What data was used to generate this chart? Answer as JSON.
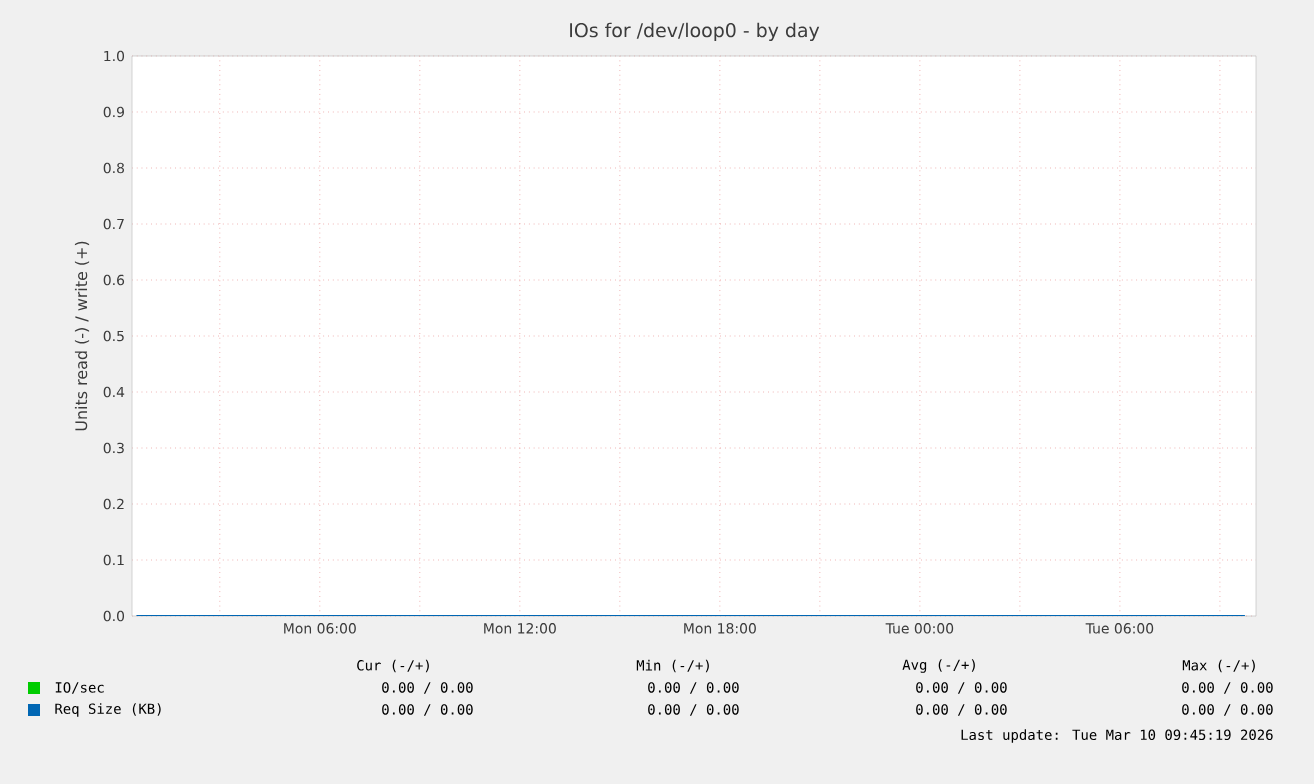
{
  "chart_data": {
    "type": "line",
    "title": "IOs for /dev/loop0 - by day",
    "ylabel": "Units read (-) / write (+)",
    "xlim": [
      "2026-03-09T00:22",
      "2026-03-10T10:05"
    ],
    "ylim": [
      0,
      1
    ],
    "xticks": [
      {
        "value": "2026-03-09T03:00",
        "label": null
      },
      {
        "value": "2026-03-09T06:00",
        "label": "Mon 06:00"
      },
      {
        "value": "2026-03-09T09:00",
        "label": null
      },
      {
        "value": "2026-03-09T12:00",
        "label": "Mon 12:00"
      },
      {
        "value": "2026-03-09T15:00",
        "label": null
      },
      {
        "value": "2026-03-09T18:00",
        "label": "Mon 18:00"
      },
      {
        "value": "2026-03-09T21:00",
        "label": null
      },
      {
        "value": "2026-03-10T00:00",
        "label": "Tue 00:00"
      },
      {
        "value": "2026-03-10T03:00",
        "label": null
      },
      {
        "value": "2026-03-10T06:00",
        "label": "Tue 06:00"
      },
      {
        "value": "2026-03-10T09:00",
        "label": null
      }
    ],
    "yticks": [
      {
        "value": 0,
        "label": "0.0"
      },
      {
        "value": 0.1,
        "label": "0.1"
      },
      {
        "value": 0.2,
        "label": "0.2"
      },
      {
        "value": 0.3,
        "label": "0.3"
      },
      {
        "value": 0.4,
        "label": "0.4"
      },
      {
        "value": 0.5,
        "label": "0.5"
      },
      {
        "value": 0.6,
        "label": "0.6"
      },
      {
        "value": 0.7,
        "label": "0.7"
      },
      {
        "value": 0.8,
        "label": "0.8"
      },
      {
        "value": 0.9,
        "label": "0.9"
      },
      {
        "value": 1,
        "label": "1.0"
      }
    ],
    "grid": true,
    "legend": "bottom left",
    "series": [
      {
        "name": "IO/sec",
        "color": "#00cc00",
        "values": [
          null,
          null
        ]
      },
      {
        "name": "Req Size (KB)",
        "color": "#0066b3",
        "x": [
          "2026-03-09T00:30",
          "2026-03-10T09:45"
        ],
        "values": [
          0,
          0
        ]
      }
    ],
    "annotations": [
      "Cur (-/+)",
      "Min (-/+)",
      "Avg (-/+)",
      "Max (-/+)",
      "0.00 /     0.00",
      "0.00 /     0.00",
      "0.00 /     0.00",
      "0.00 /     0.00",
      "0.00 /     0.00",
      "0.00 /     0.00",
      "0.00 /     0.00",
      "0.00 /     0.00",
      "Last update: Tue Mar 10 09:45:19 2026"
    ]
  }
}
